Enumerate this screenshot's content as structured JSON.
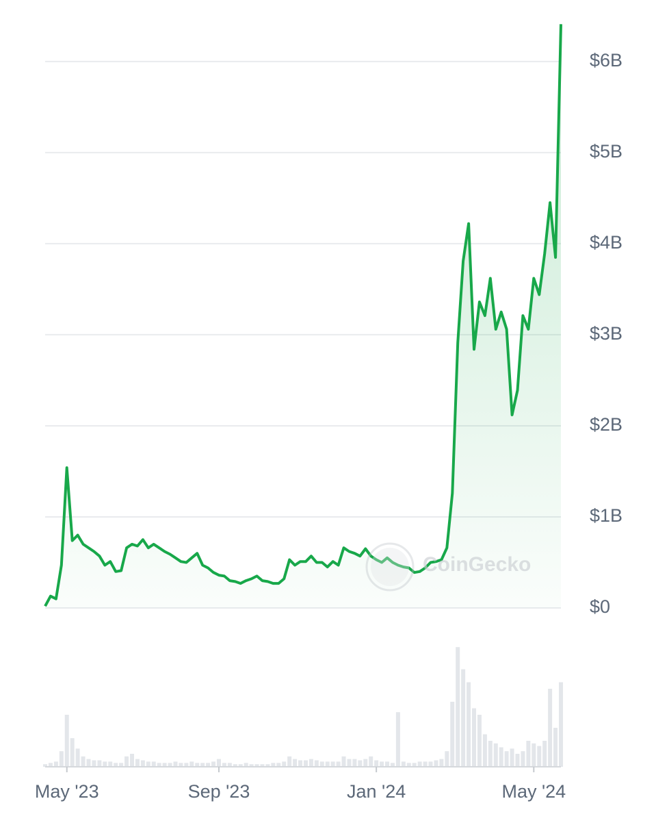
{
  "chart_data": [
    {
      "type": "line",
      "watermark": "CoinGecko",
      "color": "#18a84a",
      "grid": true,
      "categories": [
        null,
        null,
        null,
        null,
        "May '23",
        null,
        null,
        null,
        null,
        null,
        null,
        null,
        null,
        null,
        null,
        null,
        null,
        null,
        null,
        null,
        null,
        null,
        null,
        null,
        null,
        null,
        null,
        null,
        null,
        null,
        null,
        null,
        "Sep '23",
        null,
        null,
        null,
        null,
        null,
        null,
        null,
        null,
        null,
        null,
        null,
        null,
        null,
        null,
        null,
        null,
        null,
        null,
        null,
        null,
        null,
        null,
        null,
        null,
        null,
        null,
        null,
        null,
        "Jan '24",
        null,
        null,
        null,
        null,
        null,
        null,
        null,
        null,
        null,
        null,
        null,
        null,
        null,
        null,
        null,
        null,
        null,
        null,
        null,
        null,
        null,
        null,
        null,
        null,
        null,
        null,
        null,
        null,
        "May '24",
        null,
        null,
        null,
        null,
        null
      ],
      "values": [
        0.02,
        0.13,
        0.1,
        0.47,
        1.54,
        0.74,
        0.8,
        0.7,
        0.66,
        0.62,
        0.57,
        0.47,
        0.51,
        0.4,
        0.41,
        0.66,
        0.7,
        0.68,
        0.75,
        0.66,
        0.7,
        0.66,
        0.62,
        0.59,
        0.55,
        0.51,
        0.5,
        0.55,
        0.6,
        0.47,
        0.44,
        0.39,
        0.36,
        0.35,
        0.3,
        0.29,
        0.27,
        0.3,
        0.32,
        0.35,
        0.3,
        0.29,
        0.27,
        0.27,
        0.32,
        0.53,
        0.47,
        0.51,
        0.51,
        0.57,
        0.5,
        0.5,
        0.45,
        0.51,
        0.47,
        0.66,
        0.62,
        0.6,
        0.57,
        0.65,
        0.57,
        0.53,
        0.5,
        0.55,
        0.5,
        0.47,
        0.45,
        0.44,
        0.39,
        0.4,
        0.44,
        0.5,
        0.51,
        0.53,
        0.66,
        1.26,
        2.91,
        3.81,
        4.22,
        2.84,
        3.36,
        3.21,
        3.62,
        3.06,
        3.25,
        3.06,
        2.12,
        2.39,
        3.21,
        3.06,
        3.62,
        3.44,
        3.89,
        4.45,
        3.85,
        6.41
      ],
      "ylim": [
        0,
        6.45
      ],
      "yticks": [
        {
          "value": 0,
          "label": "$0"
        },
        {
          "value": 1,
          "label": "$1B"
        },
        {
          "value": 2,
          "label": "$2B"
        },
        {
          "value": 3,
          "label": "$3B"
        },
        {
          "value": 4,
          "label": "$4B"
        },
        {
          "value": 5,
          "label": "$5B"
        },
        {
          "value": 6,
          "label": "$6B"
        }
      ]
    },
    {
      "type": "bar",
      "color": "#e3e6ea",
      "ylim": [
        0,
        100
      ],
      "values": [
        2,
        3,
        4,
        12,
        40,
        22,
        14,
        8,
        6,
        5,
        5,
        4,
        4,
        3,
        3,
        8,
        10,
        6,
        5,
        4,
        4,
        3,
        3,
        3,
        4,
        3,
        3,
        4,
        3,
        3,
        3,
        4,
        6,
        3,
        3,
        2,
        2,
        3,
        2,
        2,
        2,
        2,
        3,
        3,
        4,
        8,
        6,
        5,
        5,
        6,
        5,
        4,
        4,
        4,
        4,
        8,
        6,
        6,
        5,
        6,
        8,
        5,
        4,
        4,
        3,
        42,
        4,
        3,
        3,
        4,
        4,
        4,
        5,
        6,
        12,
        50,
        92,
        75,
        65,
        45,
        40,
        25,
        20,
        18,
        15,
        12,
        14,
        10,
        12,
        20,
        18,
        16,
        20,
        60,
        30,
        65
      ]
    }
  ]
}
